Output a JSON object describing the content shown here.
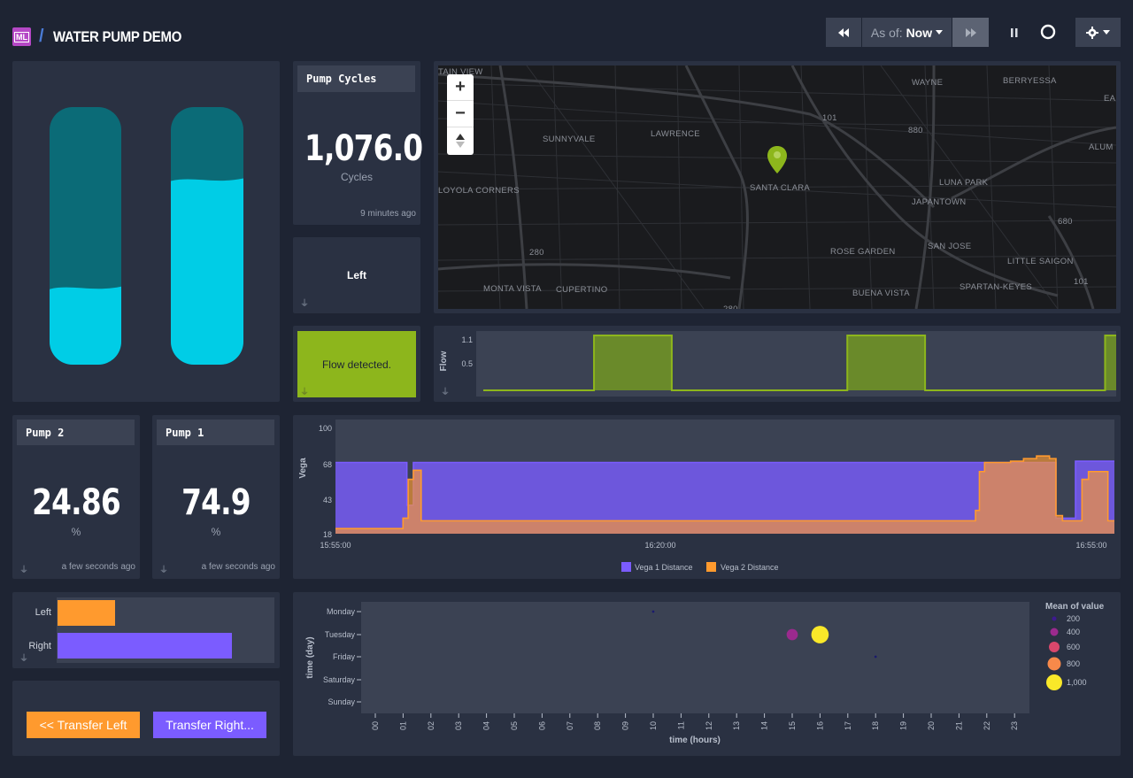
{
  "header": {
    "logo": "ML",
    "separator": "/",
    "title": "WATER PUMP DEMO"
  },
  "toolbar": {
    "rewind_icon": "rewind-icon",
    "as_of_label": "As of:",
    "as_of_value": "Now",
    "forward_icon": "fast-forward-icon",
    "pause_icon": "pause-icon",
    "record_icon": "circle-icon",
    "settings_icon": "gear-icon"
  },
  "tanks": {
    "left_fill": 0.3,
    "right_fill": 0.72,
    "empty_color": "#0b6b77",
    "fill_color": "#00cde6"
  },
  "pump_cycles": {
    "title": "Pump Cycles",
    "value": "1,076.0",
    "unit": "Cycles",
    "updated": "9 minutes ago"
  },
  "direction": {
    "value": "Left"
  },
  "flow_status": {
    "text": "Flow detected.",
    "color": "#8db61c"
  },
  "pump2": {
    "title": "Pump 2",
    "value": "24.86",
    "unit": "%",
    "updated": "a few seconds ago"
  },
  "pump1": {
    "title": "Pump 1",
    "value": "74.9",
    "unit": "%",
    "updated": "a few seconds ago"
  },
  "map": {
    "zoom_in": "+",
    "zoom_out": "−",
    "labels": [
      "TAIN VIEW",
      "SUNNYVALE",
      "LAWRENCE",
      "WAYNE",
      "BERRYESSA",
      "EA",
      "ALUM",
      "LOYOLA CORNERS",
      "SANTA CLARA",
      "LUNA PARK",
      "JAPANTOWN",
      "SAN JOSE",
      "ROSE GARDEN",
      "LITTLE SAIGON",
      "MONTA VISTA",
      "CUPERTINO",
      "BUENA VISTA",
      "SPARTAN-KEYES"
    ],
    "route_labels": [
      "101",
      "880",
      "680",
      "280",
      "101",
      "280"
    ]
  },
  "flow_chart": {
    "ylabel": "Flow",
    "yticks": [
      "1.1",
      "0.5"
    ],
    "ylim": [
      0,
      1.1
    ],
    "segments": [
      {
        "start": 0.0,
        "end": 0.265,
        "value": 0
      },
      {
        "start": 0.265,
        "end": 0.44,
        "value": 1
      },
      {
        "start": 0.44,
        "end": 0.835,
        "value": 0
      },
      {
        "start": 0.835,
        "end": 1.01,
        "value": 1
      },
      {
        "start": 1.01,
        "end": 1.415,
        "value": 0
      },
      {
        "start": 1.415,
        "end": 1.44,
        "value": 1
      }
    ],
    "color": "#8db61c"
  },
  "chart_data": [
    {
      "type": "area",
      "ylabel": "Vega",
      "yticks": [
        "100",
        "68",
        "43",
        "18"
      ],
      "ylim": [
        18,
        100
      ],
      "x_ticks": [
        "15:55:00",
        "16:20:00",
        "16:55:00"
      ],
      "x_range": [
        0,
        60
      ],
      "series": [
        {
          "name": "Vega 1 Distance",
          "color": "#7b5cff",
          "points": [
            [
              0,
              73
            ],
            [
              3,
              73
            ],
            [
              3.5,
              73
            ],
            [
              5,
              73
            ],
            [
              5.5,
              40
            ],
            [
              5.8,
              40
            ],
            [
              6,
              73
            ],
            [
              30,
              73
            ],
            [
              32,
              73
            ],
            [
              35,
              73
            ],
            [
              38,
              73
            ],
            [
              41,
              73
            ],
            [
              44,
              73
            ],
            [
              47,
              73
            ],
            [
              50,
              73
            ],
            [
              52,
              73
            ],
            [
              55,
              73
            ],
            [
              55.5,
              30
            ],
            [
              56,
              30
            ],
            [
              57,
              74
            ],
            [
              58,
              74
            ],
            [
              59,
              74
            ],
            [
              60,
              74
            ]
          ]
        },
        {
          "name": "Vega 2 Distance",
          "color": "#ff9a2e",
          "points": [
            [
              0,
              22
            ],
            [
              5,
              22
            ],
            [
              5.2,
              30
            ],
            [
              5.6,
              60
            ],
            [
              6,
              67
            ],
            [
              6.3,
              67
            ],
            [
              6.6,
              28
            ],
            [
              7,
              28
            ],
            [
              25,
              28
            ],
            [
              30,
              28
            ],
            [
              35,
              28
            ],
            [
              40,
              28
            ],
            [
              45,
              28
            ],
            [
              49,
              28
            ],
            [
              49.3,
              36
            ],
            [
              49.6,
              66
            ],
            [
              50,
              73
            ],
            [
              51,
              73
            ],
            [
              52,
              74
            ],
            [
              53,
              76
            ],
            [
              54,
              78
            ],
            [
              55,
              76
            ],
            [
              55.5,
              32
            ],
            [
              56,
              28
            ],
            [
              57,
              28
            ],
            [
              57.5,
              60
            ],
            [
              58,
              66
            ],
            [
              59,
              66
            ],
            [
              59.5,
              28
            ],
            [
              60,
              28
            ]
          ]
        }
      ],
      "legend": [
        "Vega 1 Distance",
        "Vega 2 Distance"
      ],
      "legend_placement": "bottom"
    },
    {
      "type": "scatter",
      "xlabel": "time (hours)",
      "ylabel": "time (day)",
      "x_ticks": [
        "00",
        "01",
        "02",
        "03",
        "04",
        "05",
        "06",
        "07",
        "08",
        "09",
        "10",
        "11",
        "12",
        "13",
        "14",
        "15",
        "16",
        "17",
        "18",
        "19",
        "20",
        "21",
        "22",
        "23"
      ],
      "y_ticks": [
        "Monday",
        "Tuesday",
        "Friday",
        "Saturday",
        "Sunday"
      ],
      "points": [
        {
          "hour": 10,
          "day": "Monday",
          "value": 20
        },
        {
          "hour": 15,
          "day": "Tuesday",
          "value": 450
        },
        {
          "hour": 16,
          "day": "Tuesday",
          "value": 1076
        },
        {
          "hour": 18,
          "day": "Friday",
          "value": 20
        }
      ],
      "legend_title": "Mean of value",
      "legend": [
        {
          "label": "200",
          "color": "#3d1a8f"
        },
        {
          "label": "400",
          "color": "#9b2a8e"
        },
        {
          "label": "600",
          "color": "#d9476c"
        },
        {
          "label": "800",
          "color": "#f7894a"
        },
        {
          "label": "1,000",
          "color": "#f9e829"
        }
      ],
      "legend_placement": "right"
    }
  ],
  "transfer": {
    "left_label": "Left",
    "right_label": "Right",
    "left_value": 0.33,
    "right_value": 1.0,
    "left_color": "#ff9a2e",
    "right_color": "#7b5cff",
    "button_left": "<< Transfer Left",
    "button_right": "Transfer Right..."
  }
}
